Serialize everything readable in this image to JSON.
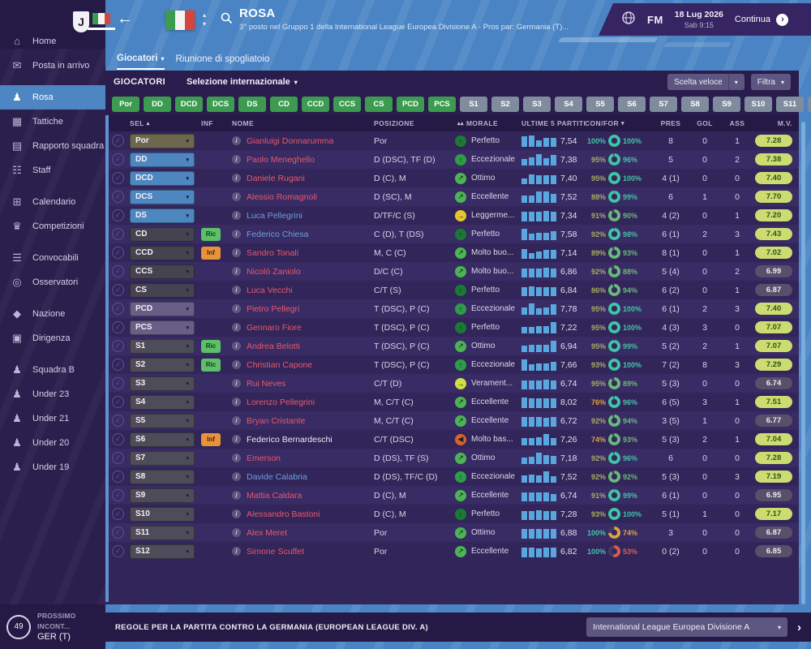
{
  "colors": {
    "accent_blue": "#4a84c4",
    "panel": "#32255a",
    "green_button": "#3c9b51",
    "gray_button": "#808b9d",
    "teal": "#3fc4a6",
    "olive": "#a9ad5e",
    "green": "#68b97c",
    "orange": "#dfa23f",
    "red": "#e05a50",
    "bar_blue": "#5aa7e0",
    "mv_good_bg": "#cbdc71",
    "name_red": "#e8596b",
    "name_blue": "#6f9fdd"
  },
  "topbar": {
    "title": "ROSA",
    "subtitle": "3° posto nel Gruppo 1 della International League Europea Divisione A - Pros par: Germania (T)...",
    "fm_label": "FM",
    "date": "18 Lug 2026",
    "time": "Sab 9:15",
    "continue_label": "Continua",
    "back_glyph": "←"
  },
  "tabs": {
    "active": "Giocatori",
    "secondary": "Riunione di spogliatoio"
  },
  "toolbar": {
    "section": "GIOCATORI",
    "selection": "Selezione internazionale",
    "quick_pick": "Scelta veloce",
    "filter": "Filtra"
  },
  "filters": {
    "green": [
      "Por",
      "DD",
      "DCD",
      "DCS",
      "DS",
      "CD",
      "CCD",
      "CCS",
      "CS",
      "PCD",
      "PCS"
    ],
    "gray": [
      "S1",
      "S2",
      "S3",
      "S4",
      "S5",
      "S6",
      "S7",
      "S8",
      "S9",
      "S10",
      "S11",
      "S12"
    ]
  },
  "sidebar": {
    "items": [
      {
        "label": "Home",
        "icon": "home-icon",
        "glyph": "⌂",
        "active": false
      },
      {
        "label": "Posta in arrivo",
        "icon": "inbox-icon",
        "glyph": "✉",
        "active": false
      },
      {
        "label": "Rosa",
        "icon": "squad-icon",
        "glyph": "♟",
        "active": true
      },
      {
        "label": "Tattiche",
        "icon": "tactics-icon",
        "glyph": "▦",
        "active": false
      },
      {
        "label": "Rapporto squadra",
        "icon": "team-report-icon",
        "glyph": "▤",
        "active": false
      },
      {
        "label": "Staff",
        "icon": "staff-icon",
        "glyph": "☷",
        "active": false
      },
      {
        "label": "Calendario",
        "icon": "calendar-icon",
        "glyph": "⊞",
        "active": false
      },
      {
        "label": "Competizioni",
        "icon": "competitions-icon",
        "glyph": "♛",
        "active": false
      },
      {
        "label": "Convocabili",
        "icon": "call-ups-icon",
        "glyph": "☰",
        "active": false
      },
      {
        "label": "Osservatori",
        "icon": "scouts-icon",
        "glyph": "◎",
        "active": false
      },
      {
        "label": "Nazione",
        "icon": "nation-icon",
        "glyph": "◆",
        "active": false
      },
      {
        "label": "Dirigenza",
        "icon": "board-icon",
        "glyph": "▣",
        "active": false
      },
      {
        "label": "Squadra B",
        "icon": "b-team-icon",
        "glyph": "♟",
        "active": false
      },
      {
        "label": "Under 23",
        "icon": "u23-team-icon",
        "glyph": "♟",
        "active": false
      },
      {
        "label": "Under 21",
        "icon": "u21-team-icon",
        "glyph": "♟",
        "active": false
      },
      {
        "label": "Under 20",
        "icon": "u20-team-icon",
        "glyph": "♟",
        "active": false
      },
      {
        "label": "Under 19",
        "icon": "u19-team-icon",
        "glyph": "♟",
        "active": false
      }
    ]
  },
  "next_match": {
    "label": "PROSSIMO INCONT...",
    "opponent": "GER (T)",
    "badge": "49"
  },
  "bottombar": {
    "rules": "REGOLE PER LA PARTITA CONTRO LA GERMANIA (EUROPEAN LEAGUE DIV. A)",
    "competition": "International League Europea Divisione A",
    "next_glyph": "›"
  },
  "table": {
    "columns": [
      {
        "id": "check",
        "label": ""
      },
      {
        "id": "sel",
        "label": "SEL",
        "suffix": "▴"
      },
      {
        "id": "inf",
        "label": "INF"
      },
      {
        "id": "name",
        "label": "NOME"
      },
      {
        "id": "pos",
        "label": "POSIZIONE"
      },
      {
        "id": "morale",
        "label": "MORALE",
        "prefix": "▴▴"
      },
      {
        "id": "last5",
        "label": "ULTIME 5 PARTITE"
      },
      {
        "id": "confor",
        "label": "CON/FOR",
        "suffix": "▾"
      },
      {
        "id": "pres",
        "label": "PRES"
      },
      {
        "id": "gol",
        "label": "GOL"
      },
      {
        "id": "ass",
        "label": "ASS"
      },
      {
        "id": "mv",
        "label": "M.V."
      }
    ],
    "rows": [
      {
        "sel": "Por",
        "selc": "olive",
        "inf": null,
        "name": "Gianluigi Donnarumma",
        "nc": "r",
        "pos": "Por",
        "morale": "Perfetto",
        "mi": "up2",
        "l5": [
          0.85,
          0.9,
          0.55,
          0.7,
          0.72
        ],
        "avg": "7,54",
        "con": 100,
        "for": 100,
        "pres": "8",
        "gol": "0",
        "ass": "1",
        "mv": "7.28",
        "mvg": true
      },
      {
        "sel": "DD",
        "selc": "blue",
        "inf": null,
        "name": "Paolo Meneghello",
        "nc": "r",
        "pos": "D (DSC), TF (D)",
        "morale": "Eccezionale",
        "mi": "up1",
        "l5": [
          0.5,
          0.68,
          0.92,
          0.62,
          0.85
        ],
        "avg": "7,38",
        "con": 95,
        "for": 96,
        "pres": "5",
        "gol": "0",
        "ass": "2",
        "mv": "7.38",
        "mvg": true
      },
      {
        "sel": "DCD",
        "selc": "blue",
        "inf": null,
        "name": "Daniele Rugani",
        "nc": "r",
        "pos": "D (C), M",
        "morale": "Ottimo",
        "mi": "ne",
        "l5": [
          0.45,
          0.82,
          0.75,
          0.7,
          0.75
        ],
        "avg": "7,40",
        "con": 95,
        "for": 100,
        "pres": "4 (1)",
        "gol": "0",
        "ass": "0",
        "mv": "7.40",
        "mvg": true
      },
      {
        "sel": "DCS",
        "selc": "blue",
        "inf": null,
        "name": "Alessio Romagnoli",
        "nc": "r",
        "pos": "D (SC), M",
        "morale": "Eccellente",
        "mi": "ne",
        "l5": [
          0.6,
          0.62,
          0.9,
          0.9,
          0.7
        ],
        "avg": "7,52",
        "con": 88,
        "for": 99,
        "pres": "6",
        "gol": "1",
        "ass": "0",
        "mv": "7.70",
        "mvg": true
      },
      {
        "sel": "DS",
        "selc": "blue",
        "inf": null,
        "name": "Luca Pellegrini",
        "nc": "b",
        "pos": "D/TF/C (S)",
        "morale": "Leggerme...",
        "mi": "mid",
        "l5": [
          0.8,
          0.8,
          0.82,
          0.85,
          0.8
        ],
        "avg": "7,34",
        "con": 91,
        "for": 90,
        "pres": "4 (2)",
        "gol": "0",
        "ass": "1",
        "mv": "7.20",
        "mvg": true
      },
      {
        "sel": "CD",
        "selc": "dark",
        "inf": "Ric",
        "name": "Federico Chiesa",
        "nc": "b",
        "pos": "C (D), T (DS)",
        "morale": "Perfetto",
        "mi": "up2",
        "l5": [
          0.9,
          0.5,
          0.62,
          0.62,
          0.7
        ],
        "avg": "7,58",
        "con": 92,
        "for": 98,
        "pres": "6 (1)",
        "gol": "2",
        "ass": "3",
        "mv": "7.43",
        "mvg": true
      },
      {
        "sel": "CCD",
        "selc": "dark",
        "inf": "Inf",
        "name": "Sandro Tonali",
        "nc": "r",
        "pos": "M, C (C)",
        "morale": "Molto buo...",
        "mi": "ne",
        "l5": [
          0.8,
          0.45,
          0.62,
          0.7,
          0.75
        ],
        "avg": "7,14",
        "con": 89,
        "for": 93,
        "pres": "8 (1)",
        "gol": "0",
        "ass": "1",
        "mv": "7.02",
        "mvg": true
      },
      {
        "sel": "CCS",
        "selc": "dark",
        "inf": null,
        "name": "Nicolò Zaniolo",
        "nc": "r",
        "pos": "D/C (C)",
        "morale": "Molto buo...",
        "mi": "ne",
        "l5": [
          0.7,
          0.75,
          0.75,
          0.8,
          0.75
        ],
        "avg": "6,86",
        "con": 92,
        "for": 88,
        "pres": "5 (4)",
        "gol": "0",
        "ass": "2",
        "mv": "6.99",
        "mvg": false
      },
      {
        "sel": "CS",
        "selc": "dark",
        "inf": null,
        "name": "Luca Vecchi",
        "nc": "r",
        "pos": "C/T (S)",
        "morale": "Perfetto",
        "mi": "up2",
        "l5": [
          0.7,
          0.8,
          0.75,
          0.7,
          0.75
        ],
        "avg": "6,84",
        "con": 86,
        "for": 94,
        "pres": "6 (2)",
        "gol": "0",
        "ass": "1",
        "mv": "6.87",
        "mvg": false
      },
      {
        "sel": "PCD",
        "selc": "purple",
        "inf": null,
        "name": "Pietro Pellegri",
        "nc": "r",
        "pos": "T (DSC), P (C)",
        "morale": "Eccezionale",
        "mi": "up1",
        "l5": [
          0.6,
          0.92,
          0.5,
          0.62,
          0.85
        ],
        "avg": "7,78",
        "con": 95,
        "for": 100,
        "pres": "6 (1)",
        "gol": "2",
        "ass": "3",
        "mv": "7.40",
        "mvg": true
      },
      {
        "sel": "PCS",
        "selc": "purple",
        "inf": null,
        "name": "Gennaro Fiore",
        "nc": "r",
        "pos": "T (DSC), P (C)",
        "morale": "Perfetto",
        "mi": "up2",
        "l5": [
          0.5,
          0.55,
          0.6,
          0.62,
          0.95
        ],
        "avg": "7,22",
        "con": 95,
        "for": 100,
        "pres": "4 (3)",
        "gol": "3",
        "ass": "0",
        "mv": "7.07",
        "mvg": true
      },
      {
        "sel": "S1",
        "selc": "gray",
        "inf": "Ric",
        "name": "Andrea Belotti",
        "nc": "r",
        "pos": "T (DSC), P (C)",
        "morale": "Ottimo",
        "mi": "ne",
        "l5": [
          0.55,
          0.6,
          0.6,
          0.62,
          0.95
        ],
        "avg": "6,94",
        "con": 95,
        "for": 99,
        "pres": "5 (2)",
        "gol": "2",
        "ass": "1",
        "mv": "7.07",
        "mvg": true
      },
      {
        "sel": "S2",
        "selc": "gray",
        "inf": "Ric",
        "name": "Christian Capone",
        "nc": "r",
        "pos": "T (DSC), P (C)",
        "morale": "Eccezionale",
        "mi": "up1",
        "l5": [
          0.9,
          0.5,
          0.62,
          0.62,
          0.75
        ],
        "avg": "7,66",
        "con": 93,
        "for": 100,
        "pres": "7 (2)",
        "gol": "8",
        "ass": "3",
        "mv": "7.29",
        "mvg": true
      },
      {
        "sel": "S3",
        "selc": "gray",
        "inf": null,
        "name": "Rui Neves",
        "nc": "r",
        "pos": "C/T (D)",
        "morale": "Verament...",
        "mi": "vg",
        "l5": [
          0.75,
          0.75,
          0.75,
          0.8,
          0.75
        ],
        "avg": "6,74",
        "con": 95,
        "for": 89,
        "pres": "5 (3)",
        "gol": "0",
        "ass": "0",
        "mv": "6.74",
        "mvg": false
      },
      {
        "sel": "S4",
        "selc": "gray",
        "inf": null,
        "name": "Lorenzo Pellegrini",
        "nc": "r",
        "pos": "M, C/T (C)",
        "morale": "Eccellente",
        "mi": "ne",
        "l5": [
          0.85,
          0.8,
          0.8,
          0.8,
          0.8
        ],
        "avg": "8,02",
        "con": 76,
        "for": 96,
        "pres": "6 (5)",
        "gol": "3",
        "ass": "1",
        "mv": "7.51",
        "mvg": true
      },
      {
        "sel": "S5",
        "selc": "gray",
        "inf": null,
        "name": "Bryan Cristante",
        "nc": "r",
        "pos": "M, C/T (C)",
        "morale": "Eccellente",
        "mi": "ne",
        "l5": [
          0.8,
          0.8,
          0.8,
          0.75,
          0.8
        ],
        "avg": "6,72",
        "con": 92,
        "for": 94,
        "pres": "3 (5)",
        "gol": "1",
        "ass": "0",
        "mv": "6.77",
        "mvg": false
      },
      {
        "sel": "S6",
        "selc": "gray",
        "inf": "Inf",
        "name": "Federico Bernardeschi",
        "nc": "w",
        "pos": "C/T (DSC)",
        "morale": "Molto bas...",
        "mi": "low",
        "l5": [
          0.6,
          0.6,
          0.65,
          0.9,
          0.6
        ],
        "avg": "7,26",
        "con": 74,
        "for": 93,
        "pres": "5 (3)",
        "gol": "2",
        "ass": "1",
        "mv": "7.04",
        "mvg": true
      },
      {
        "sel": "S7",
        "selc": "gray",
        "inf": null,
        "name": "Emerson",
        "nc": "r",
        "pos": "D (DS), TF (S)",
        "morale": "Ottimo",
        "mi": "ne",
        "l5": [
          0.5,
          0.6,
          0.9,
          0.72,
          0.65
        ],
        "avg": "7,18",
        "con": 92,
        "for": 96,
        "pres": "6",
        "gol": "0",
        "ass": "0",
        "mv": "7.28",
        "mvg": true
      },
      {
        "sel": "S8",
        "selc": "gray",
        "inf": null,
        "name": "Davide Calabria",
        "nc": "b",
        "pos": "D (DS), TF/C (D)",
        "morale": "Eccezionale",
        "mi": "up1",
        "l5": [
          0.6,
          0.65,
          0.6,
          0.9,
          0.55
        ],
        "avg": "7,52",
        "con": 92,
        "for": 92,
        "pres": "5 (3)",
        "gol": "0",
        "ass": "3",
        "mv": "7.19",
        "mvg": true
      },
      {
        "sel": "S9",
        "selc": "gray",
        "inf": null,
        "name": "Mattia Caldara",
        "nc": "r",
        "pos": "D (C), M",
        "morale": "Eccellente",
        "mi": "ne",
        "l5": [
          0.75,
          0.75,
          0.7,
          0.75,
          0.6
        ],
        "avg": "6,74",
        "con": 91,
        "for": 99,
        "pres": "6 (1)",
        "gol": "0",
        "ass": "0",
        "mv": "6.95",
        "mvg": false
      },
      {
        "sel": "S10",
        "selc": "gray",
        "inf": null,
        "name": "Alessandro Bastoni",
        "nc": "r",
        "pos": "D (C), M",
        "morale": "Perfetto",
        "mi": "up2",
        "l5": [
          0.75,
          0.75,
          0.8,
          0.75,
          0.75
        ],
        "avg": "7,28",
        "con": 93,
        "for": 100,
        "pres": "5 (1)",
        "gol": "1",
        "ass": "0",
        "mv": "7.17",
        "mvg": true
      },
      {
        "sel": "S11",
        "selc": "gray",
        "inf": null,
        "name": "Alex Meret",
        "nc": "r",
        "pos": "Por",
        "morale": "Ottimo",
        "mi": "ne",
        "l5": [
          0.8,
          0.8,
          0.8,
          0.8,
          0.8
        ],
        "avg": "6,88",
        "con": 100,
        "for": 74,
        "pres": "3",
        "gol": "0",
        "ass": "0",
        "mv": "6.87",
        "mvg": false
      },
      {
        "sel": "S12",
        "selc": "gray",
        "inf": null,
        "name": "Simone Scuffet",
        "nc": "r",
        "pos": "Por",
        "morale": "Eccellente",
        "mi": "ne",
        "l5": [
          0.8,
          0.8,
          0.75,
          0.8,
          0.8
        ],
        "avg": "6,82",
        "con": 100,
        "for": 53,
        "pres": "0 (2)",
        "gol": "0",
        "ass": "0",
        "mv": "6.85",
        "mvg": false
      }
    ]
  }
}
